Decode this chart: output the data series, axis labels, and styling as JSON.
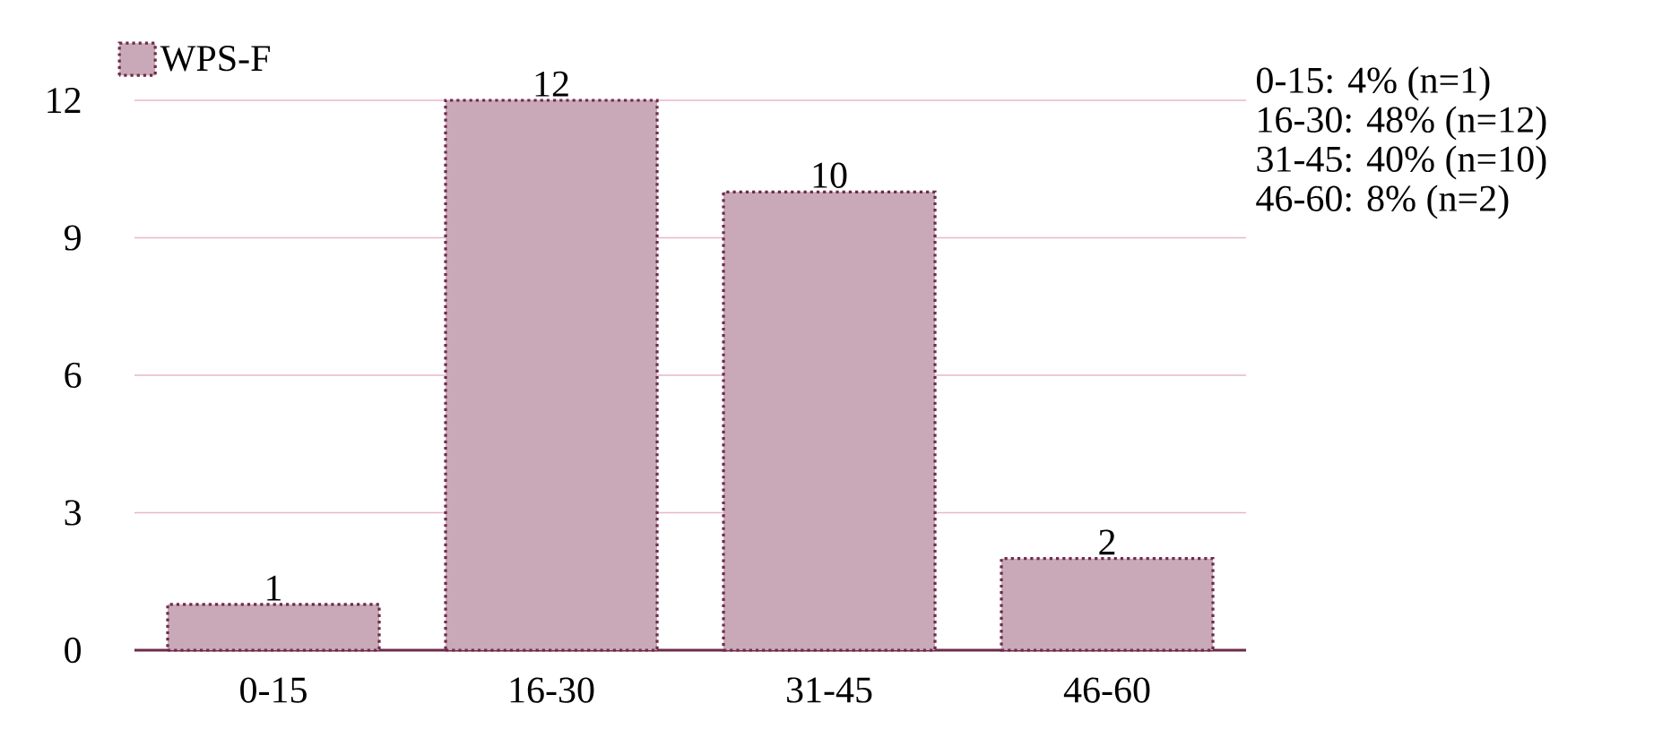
{
  "chart_data": {
    "type": "bar",
    "categories": [
      "0-15",
      "16-30",
      "31-45",
      "46-60"
    ],
    "series": [
      {
        "name": "WPS-F",
        "color": "#c9a9b8",
        "values": [
          1,
          12,
          10,
          2
        ]
      }
    ],
    "ylim": [
      0,
      12
    ],
    "yticks": [
      0,
      3,
      6,
      9,
      12
    ],
    "grid": "y",
    "legend": "top left",
    "data_labels": true,
    "annotations": [
      "0-15:    4% (n=1)",
      "16-30:  48% (n=12)",
      "31-45:  40% (n=10)",
      "46-60:  8% (n=2)"
    ]
  }
}
